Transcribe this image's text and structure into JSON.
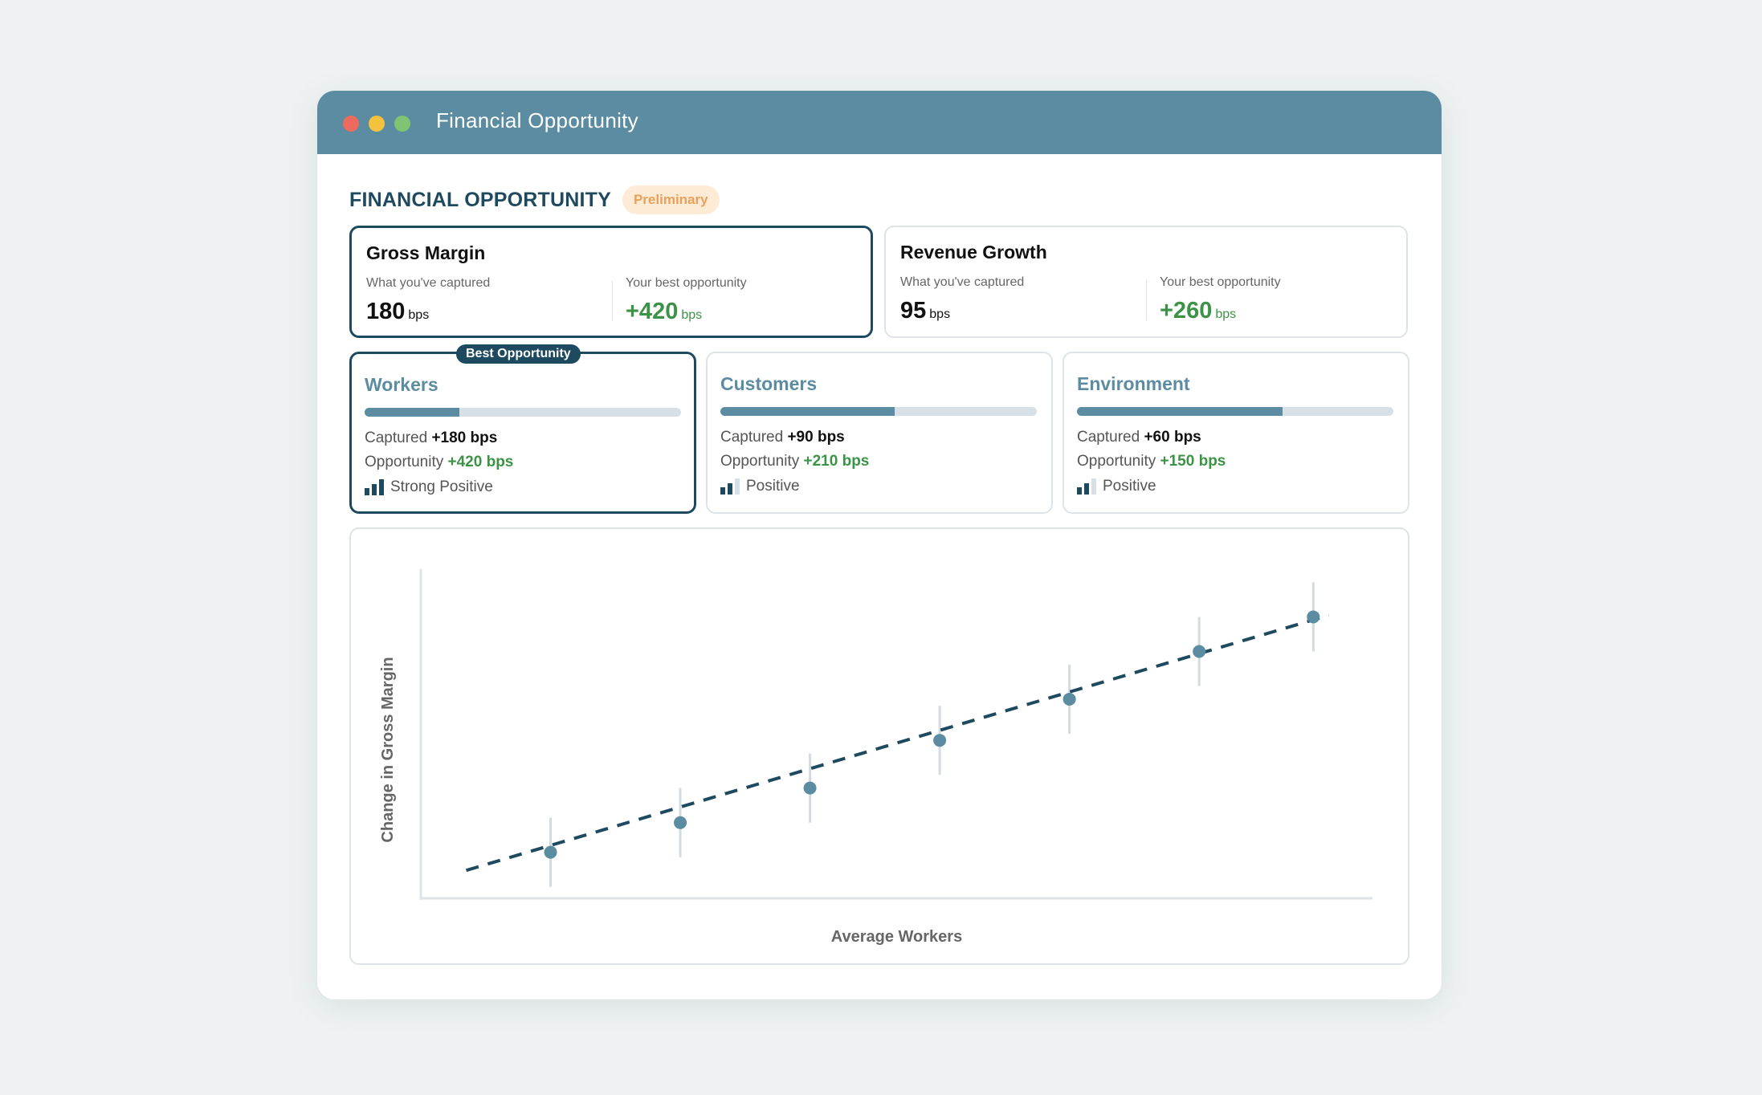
{
  "window": {
    "title": "Financial Opportunity"
  },
  "section": {
    "title": "FINANCIAL OPPORTUNITY",
    "badge": "Preliminary"
  },
  "kpis": [
    {
      "title": "Gross Margin",
      "captured_label": "What you've captured",
      "captured_value": "180",
      "captured_unit": "bps",
      "opportunity_label": "Your best opportunity",
      "opportunity_value": "+420",
      "opportunity_unit": "bps",
      "selected": true
    },
    {
      "title": "Revenue Growth",
      "captured_label": "What you've captured",
      "captured_value": "95",
      "captured_unit": "bps",
      "opportunity_label": "Your best opportunity",
      "opportunity_value": "+260",
      "opportunity_unit": "bps",
      "selected": false
    }
  ],
  "drivers": [
    {
      "title": "Workers",
      "badge": "Best Opportunity",
      "progress": 0.3,
      "captured_label": "Captured",
      "captured_value": "+180 bps",
      "opportunity_label": "Opportunity",
      "opportunity_value": "+420 bps",
      "strength": "Strong Positive",
      "signal_bars": 3,
      "selected": true
    },
    {
      "title": "Customers",
      "badge": "",
      "progress": 0.55,
      "captured_label": "Captured",
      "captured_value": "+90 bps",
      "opportunity_label": "Opportunity",
      "opportunity_value": "+210 bps",
      "strength": "Positive",
      "signal_bars": 2,
      "selected": false
    },
    {
      "title": "Environment",
      "badge": "",
      "progress": 0.65,
      "captured_label": "Captured",
      "captured_value": "+60 bps",
      "opportunity_label": "Opportunity",
      "opportunity_value": "+150 bps",
      "strength": "Positive",
      "signal_bars": 2,
      "selected": false
    }
  ],
  "colors": {
    "accent": "#5b8ca1",
    "dark": "#1e4a5f",
    "positive": "#3c9346",
    "badge_bg": "#fdebd6",
    "badge_fg": "#e8a05a"
  },
  "chart_data": {
    "type": "scatter",
    "xlabel": "Average Workers",
    "ylabel": "Change in Gross Margin",
    "xlim": [
      0,
      7.2
    ],
    "ylim": [
      0,
      10
    ],
    "x": [
      1,
      2,
      3,
      4,
      5,
      6,
      6.88
    ],
    "y": [
      1.4,
      2.3,
      3.35,
      4.8,
      6.05,
      7.5,
      8.55
    ],
    "error": [
      1.05,
      1.05,
      1.05,
      1.05,
      1.05,
      1.05,
      1.05
    ],
    "trendline": {
      "style": "dashed",
      "x": [
        0.35,
        7.0
      ],
      "y": [
        0.85,
        8.6
      ]
    },
    "grid": false
  }
}
